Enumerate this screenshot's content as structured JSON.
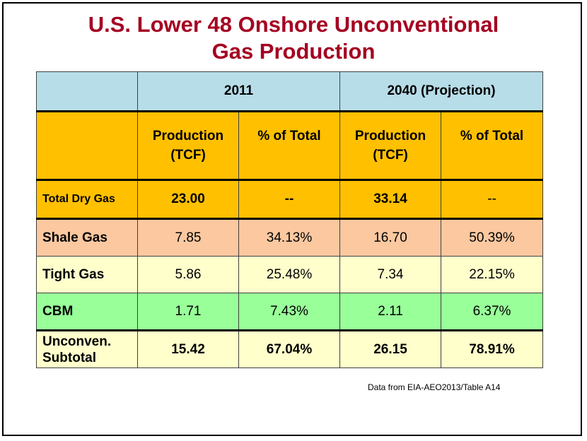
{
  "title": {
    "line1": "U.S. Lower 48 Onshore Unconventional",
    "line2": "Gas Production"
  },
  "colors": {
    "title": "#a50021",
    "year_header": "#b7dde8",
    "column_header": "#ffc000",
    "shale_row": "#fbc8a0",
    "tight_row": "#ffffcc",
    "cbm_row": "#99ff99"
  },
  "table": {
    "year_2011": "2011",
    "year_2040": "2040 (Projection)",
    "col_production_line1": "Production",
    "col_production_line2": "(TCF)",
    "col_percent": "% of Total",
    "rows": [
      {
        "label": "Total Dry Gas",
        "p2011": "23.00",
        "pct2011": "--",
        "p2040": "33.14",
        "pct2040": "--"
      },
      {
        "label": "Shale Gas",
        "p2011": "7.85",
        "pct2011": "34.13%",
        "p2040": "16.70",
        "pct2040": "50.39%"
      },
      {
        "label": "Tight Gas",
        "p2011": "5.86",
        "pct2011": "25.48%",
        "p2040": "7.34",
        "pct2040": "22.15%"
      },
      {
        "label": "CBM",
        "p2011": "1.71",
        "pct2011": "7.43%",
        "p2040": "2.11",
        "pct2040": "6.37%"
      },
      {
        "label_line1": "Unconven.",
        "label_line2": "Subtotal",
        "p2011": "15.42",
        "pct2011": "67.04%",
        "p2040": "26.15",
        "pct2040": "78.91%"
      }
    ]
  },
  "source": "Data from EIA-AEO2013/Table A14"
}
